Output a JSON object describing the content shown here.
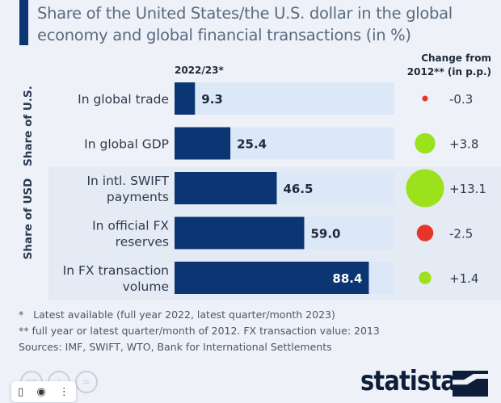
{
  "title": "Share of the United States/the U.S. dollar in the global economy and global financial transactions (in %)",
  "chart_data": {
    "type": "bar",
    "orientation": "horizontal",
    "title": "Share of the United States/the U.S. dollar in the global economy and global financial transactions (in %)",
    "series_label": "2022/23*",
    "change_label_line1": "Change from",
    "change_label_line2": "2012** (in p.p.)",
    "xlim": [
      0,
      100
    ],
    "groups": [
      {
        "name": "Share of U.S.",
        "rows": [
          0,
          1
        ]
      },
      {
        "name": "Share of USD",
        "rows": [
          2,
          3,
          4
        ]
      }
    ],
    "categories": [
      [
        "In global trade"
      ],
      [
        "In global GDP"
      ],
      [
        "In intl. SWIFT",
        "payments"
      ],
      [
        "In official FX",
        "reserves"
      ],
      [
        "In FX transaction",
        "volume"
      ]
    ],
    "values": [
      9.3,
      25.4,
      46.5,
      59.0,
      88.4
    ],
    "value_labels": [
      "9.3",
      "25.4",
      "46.5",
      "59.0",
      "88.4"
    ],
    "changes": [
      -0.3,
      3.8,
      13.1,
      -2.5,
      1.4
    ],
    "change_labels": [
      "-0.3",
      "+3.8",
      "+13.1",
      "-2.5",
      "+1.4"
    ],
    "colors": {
      "bar": "#0b3673",
      "bar_bg": "#dce8f7",
      "positive": "#9be21d",
      "negative": "#e8352b"
    }
  },
  "footnotes": [
    "*   Latest available (full year 2022, latest quarter/month 2023)",
    "** full year or latest quarter/month of 2012. FX transaction value: 2013",
    "Sources: IMF, SWIFT, WTO, Bank for International Settlements"
  ],
  "brand": "statista",
  "license_icons": [
    "cc",
    "i",
    "="
  ],
  "toolbar": {
    "icons": [
      "bookmark-icon",
      "lens-icon",
      "more-icon"
    ]
  }
}
